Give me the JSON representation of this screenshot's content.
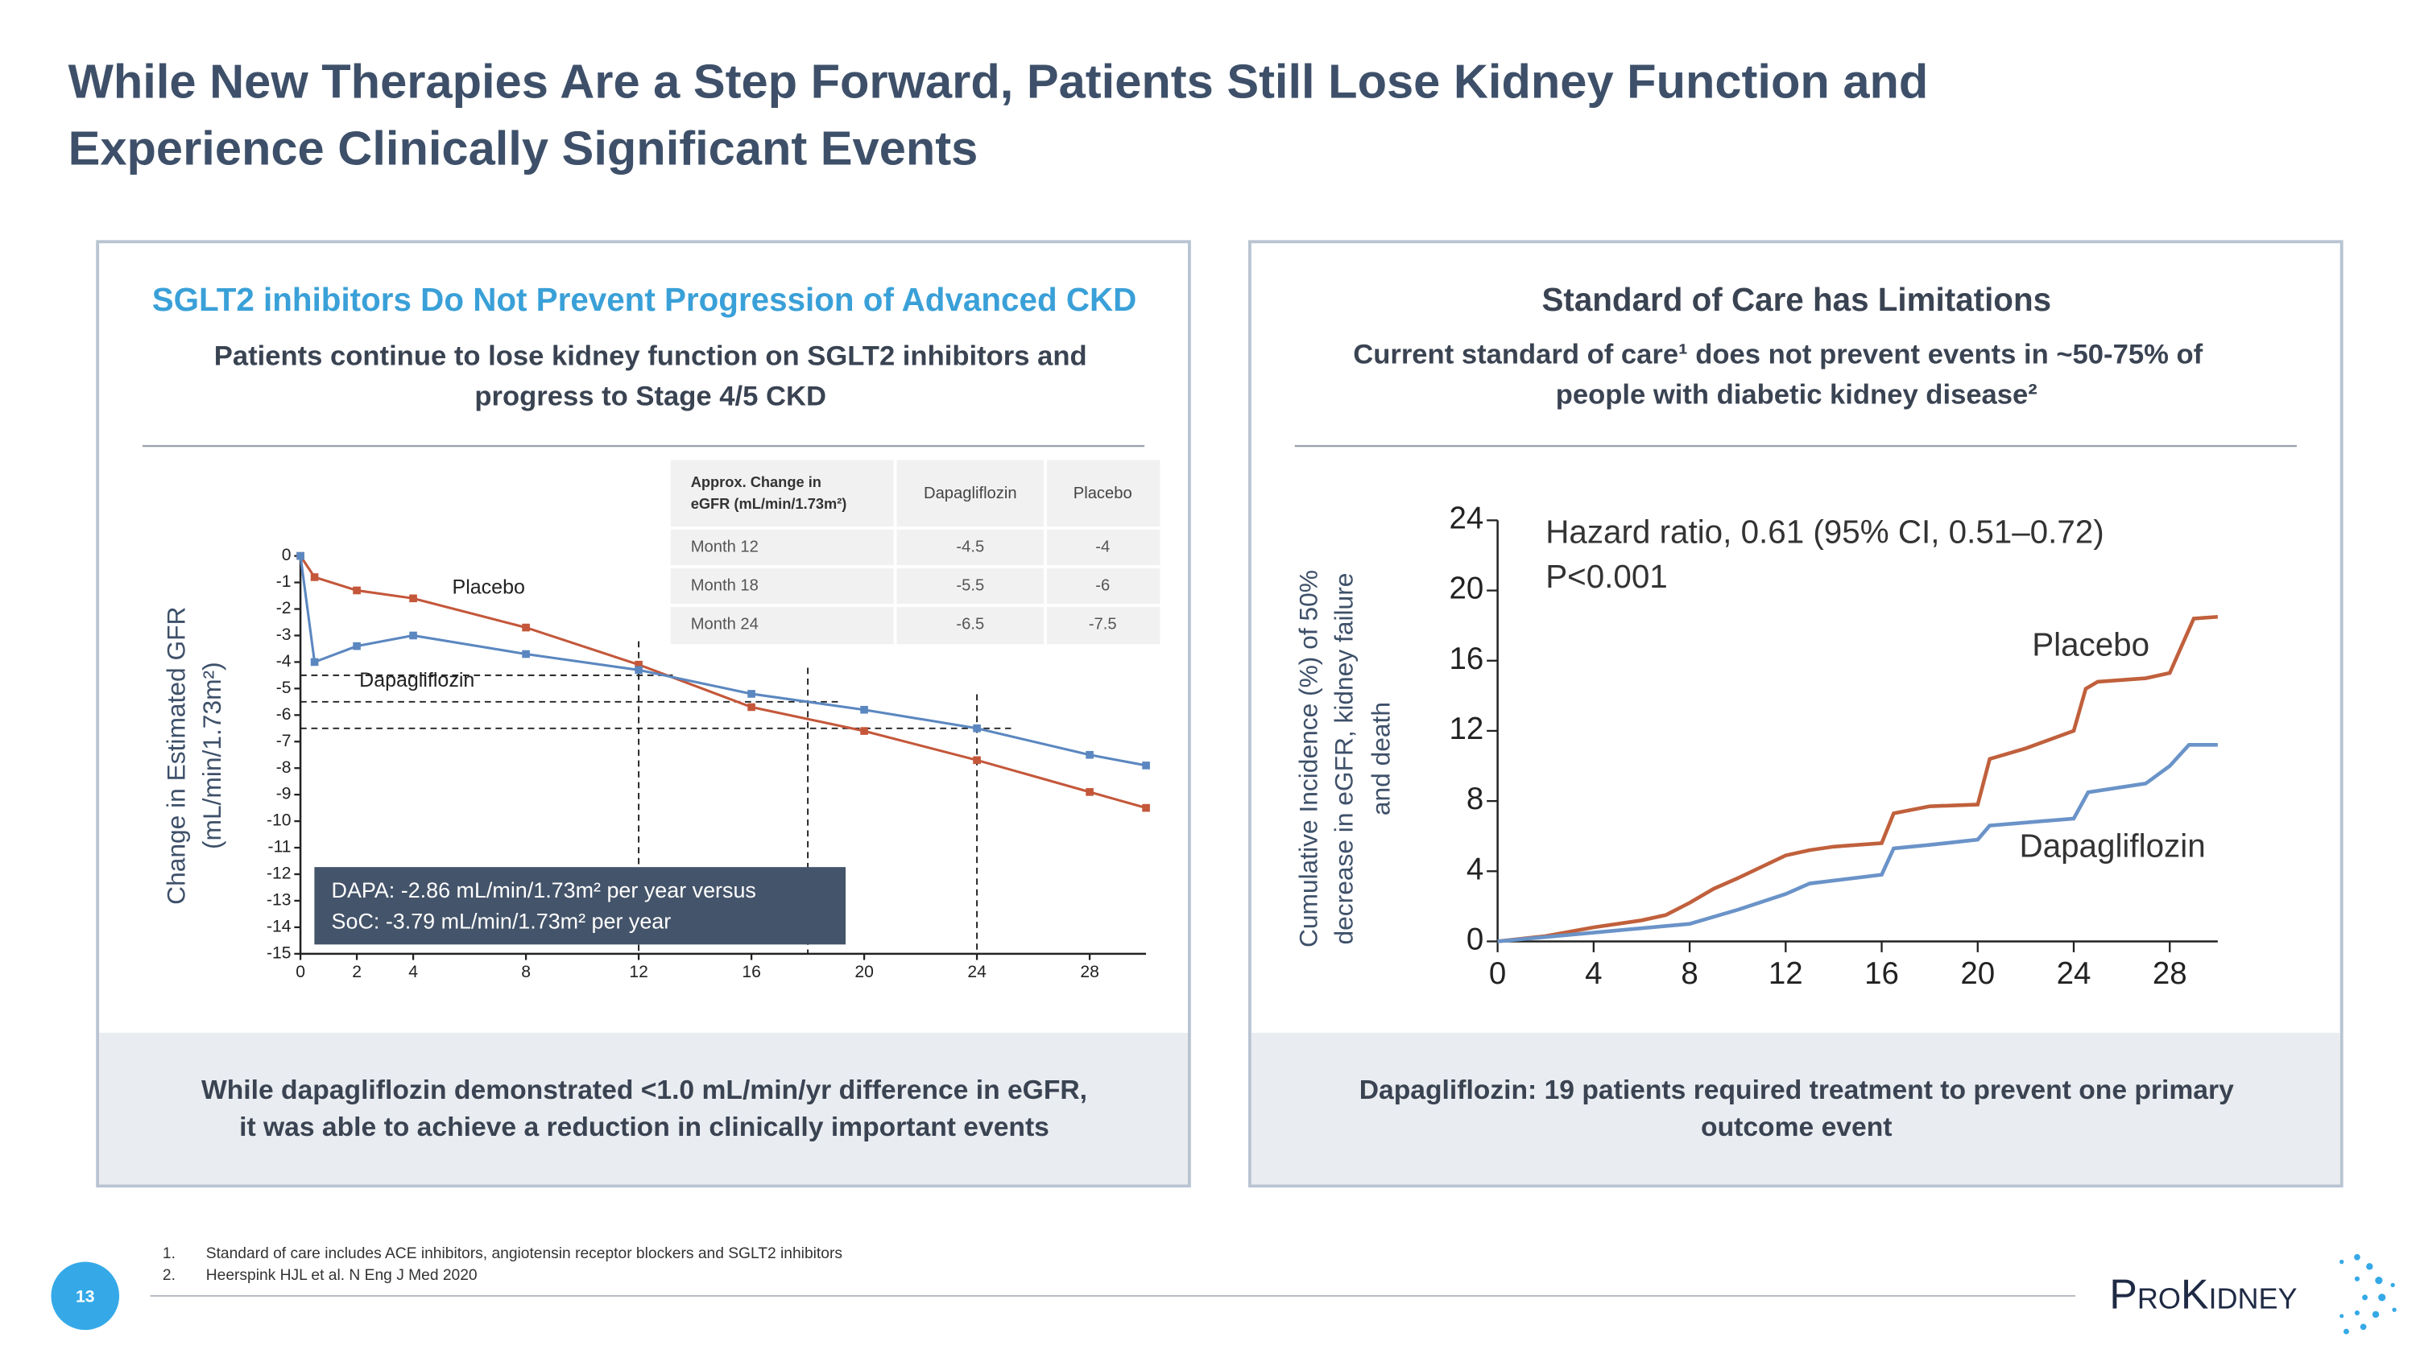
{
  "header": {
    "title": [
      "While New Therapies Are a Step Forward, Patients Still Lose Kidney Function and",
      "Experience Clinically Significant Events"
    ]
  },
  "panels": [
    {
      "heading": "SGLT2 inhibitors Do Not Prevent Progression of Advanced CKD",
      "subtitle": [
        "Patients continue to lose kidney function on SGLT2 inhibitors and",
        "progress to Stage 4/5 CKD"
      ],
      "caption": [
        "While dapagliflozin demonstrated <1.0 mL/min/yr difference in eGFR,",
        "it was able to achieve a reduction in clinically important events"
      ]
    },
    {
      "heading": "Standard of Care has Limitations",
      "subtitle": [
        "Current standard of care¹ does not prevent events in ~50-75% of",
        "people with diabetic kidney disease²"
      ],
      "caption": [
        "Dapagliflozin: 19 patients required treatment to prevent one primary",
        "outcome event"
      ]
    }
  ],
  "table": {
    "header": [
      [
        "Approx. Change in",
        "eGFR (mL/min/1.73m²)"
      ],
      "Dapagliflozin",
      "Placebo"
    ],
    "rows": [
      [
        "Month 12",
        -4.5,
        -4
      ],
      [
        "Month 18",
        -5.5,
        -6
      ],
      [
        "Month 24",
        -6.5,
        -7.5
      ]
    ]
  },
  "chart_data": [
    {
      "type": "line",
      "ylabel": [
        "Change in Estimated GFR",
        "(mL/min/1.73m²)"
      ],
      "x": [
        0,
        0.5,
        2,
        4,
        8,
        12,
        16,
        20,
        24,
        28,
        30
      ],
      "series": [
        {
          "name": "Placebo",
          "color": "#c4573a",
          "values": [
            0,
            -0.8,
            -1.3,
            -1.6,
            -2.7,
            -4.1,
            -5.7,
            -6.6,
            -7.7,
            -8.9,
            -9.5
          ]
        },
        {
          "name": "Dapagliflozin",
          "color": "#5b87c0",
          "values": [
            0,
            -4.0,
            -3.4,
            -3.0,
            -3.7,
            -4.3,
            -5.2,
            -5.8,
            -6.5,
            -7.5,
            -7.9
          ]
        }
      ],
      "markers": true,
      "xlim": [
        0,
        30
      ],
      "ylim": [
        -15,
        0
      ],
      "xticks": [
        0,
        2,
        4,
        8,
        12,
        16,
        20,
        24,
        28
      ],
      "yticks": [
        0,
        -1,
        -2,
        -3,
        -4,
        -5,
        -6,
        -7,
        -8,
        -9,
        -10,
        -11,
        -12,
        -13,
        -14,
        -15
      ],
      "ref_lines": [
        {
          "x": 12,
          "y": -4.5
        },
        {
          "x": 18,
          "y": -5.5
        },
        {
          "x": 24,
          "y": -6.5
        }
      ],
      "annotations": [
        "DAPA: -2.86 mL/min/1.73m² per year versus",
        "SoC: -3.79 mL/min/1.73m² per year"
      ]
    },
    {
      "type": "line",
      "ylabel": [
        "Cumulative Incidence (%) of 50%",
        "decrease in eGFR, kidney failure",
        "and death"
      ],
      "series": [
        {
          "name": "Placebo",
          "color": "#c0603c",
          "x": [
            0,
            2,
            4,
            6,
            7,
            8,
            9,
            10,
            12,
            13,
            14,
            16,
            16.5,
            18,
            20,
            20.5,
            22,
            24,
            24.5,
            25,
            27,
            28,
            29,
            30
          ],
          "values": [
            0,
            0.3,
            0.8,
            1.2,
            1.5,
            2.2,
            3.0,
            3.6,
            4.9,
            5.2,
            5.4,
            5.6,
            7.3,
            7.7,
            7.8,
            10.4,
            11,
            12,
            14.4,
            14.8,
            15.0,
            15.3,
            18.4,
            18.5
          ]
        },
        {
          "name": "Dapagliflozin",
          "color": "#6a93c8",
          "x": [
            0,
            4,
            8,
            10,
            12,
            13,
            16,
            16.5,
            18,
            20,
            20.5,
            24,
            24.6,
            27,
            28,
            28.8,
            30
          ],
          "values": [
            0,
            0.5,
            1.0,
            1.8,
            2.7,
            3.3,
            3.8,
            5.3,
            5.5,
            5.8,
            6.6,
            7.0,
            8.5,
            9.0,
            10.0,
            11.2,
            11.2
          ]
        }
      ],
      "xlim": [
        0,
        30
      ],
      "ylim": [
        0,
        24
      ],
      "xticks": [
        0,
        4,
        8,
        12,
        16,
        20,
        24,
        28
      ],
      "yticks": [
        0,
        4,
        8,
        12,
        16,
        20,
        24
      ],
      "annotations": [
        "Hazard ratio, 0.61 (95% CI, 0.51–0.72)",
        "P<0.001"
      ]
    }
  ],
  "footer": {
    "footnotes": [
      {
        "number": "1.",
        "text": "Standard of care includes ACE inhibitors, angiotensin receptor blockers and SGLT2 inhibitors"
      },
      {
        "number": "2.",
        "text": "Heerspink HJL et al. N Eng J Med 2020"
      }
    ],
    "page": 13,
    "logo": "ProKidney"
  }
}
